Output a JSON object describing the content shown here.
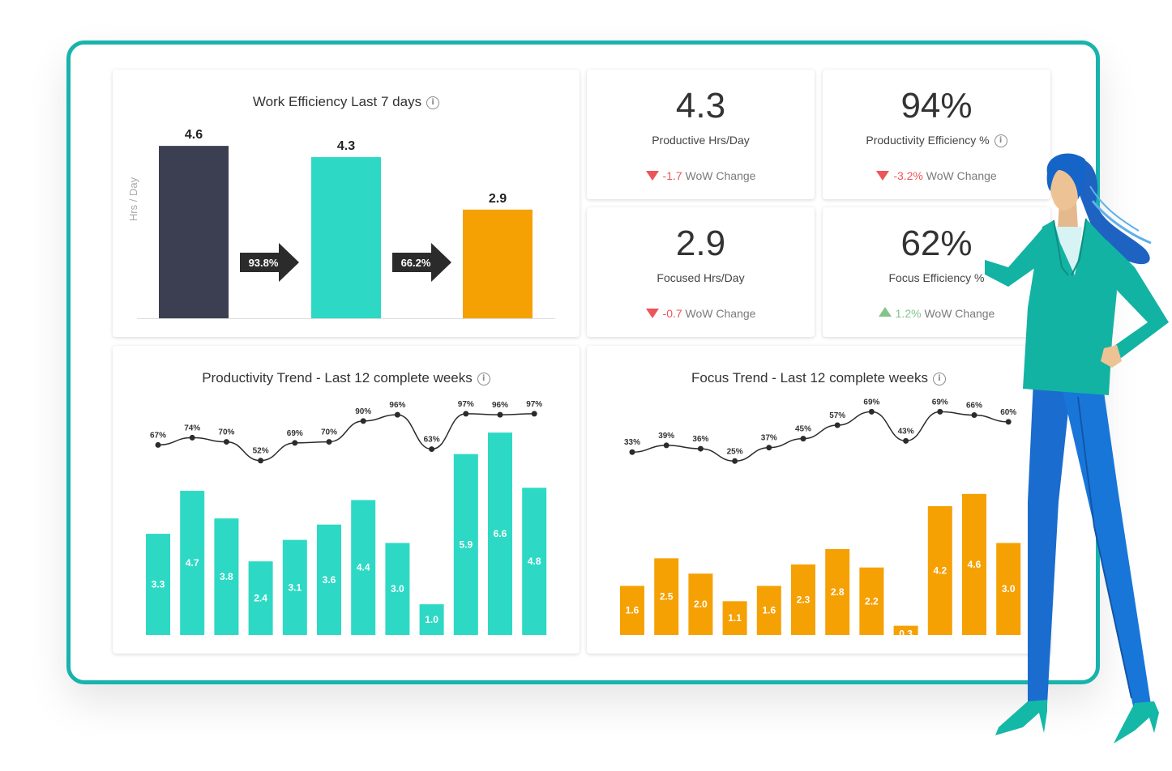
{
  "colors": {
    "frame": "#18b3ad",
    "dark_bar": "#3b3f51",
    "teal": "#2dd9c5",
    "orange": "#f5a104",
    "negative": "#ee5558",
    "positive": "#84c48b"
  },
  "work_efficiency": {
    "title": "Work Efficiency Last 7 days",
    "info_icon": "info-icon",
    "ylabel": "Hrs / Day",
    "arrows": [
      "93.8%",
      "66.2%"
    ]
  },
  "kpis": [
    {
      "value": "4.3",
      "label": "Productive Hrs/Day",
      "change": "-1.7",
      "change_suffix": "WoW Change",
      "direction": "down",
      "has_info": false
    },
    {
      "value": "94%",
      "label": "Productivity Efficiency %",
      "change": "-3.2%",
      "change_suffix": "WoW Change",
      "direction": "down",
      "has_info": true
    },
    {
      "value": "2.9",
      "label": "Focused Hrs/Day",
      "change": "-0.7",
      "change_suffix": "WoW Change",
      "direction": "down",
      "has_info": false
    },
    {
      "value": "62%",
      "label": "Focus Efficiency %",
      "change": "1.2%",
      "change_suffix": "WoW Change",
      "direction": "up",
      "has_info": false
    }
  ],
  "productivity_trend": {
    "title": "Productivity Trend - Last 12 complete weeks"
  },
  "focus_trend": {
    "title": "Focus Trend - Last 12 complete weeks"
  },
  "chart_data": [
    {
      "type": "bar",
      "title": "Work Efficiency Last 7 days",
      "ylabel": "Hrs / Day",
      "categories": [
        "",
        "",
        ""
      ],
      "values": [
        4.6,
        4.3,
        2.9
      ],
      "value_labels": [
        "4.6",
        "4.3",
        "2.9"
      ],
      "colors": [
        "#3b3f51",
        "#2dd9c5",
        "#f5a104"
      ],
      "ylim": [
        0,
        5.1
      ],
      "annotations": [
        "93.8%",
        "66.2%"
      ]
    },
    {
      "type": "bar",
      "title": "Productivity Trend - Last 12 complete weeks",
      "values": [
        3.3,
        4.7,
        3.8,
        2.4,
        3.1,
        3.6,
        4.4,
        3.0,
        1.0,
        5.9,
        6.6,
        4.8
      ],
      "value_labels": [
        "3.3",
        "4.7",
        "3.8",
        "2.4",
        "3.1",
        "3.6",
        "4.4",
        "3.0",
        "1.0",
        "5.9",
        "6.6",
        "4.8"
      ],
      "line_values": [
        67,
        74,
        70,
        52,
        69,
        70,
        90,
        96,
        63,
        97,
        96,
        97
      ],
      "line_labels": [
        "67%",
        "74%",
        "70%",
        "52%",
        "69%",
        "70%",
        "90%",
        "96%",
        "63%",
        "97%",
        "96%",
        "97%"
      ],
      "bar_color": "#2dd9c5",
      "ylim": [
        0,
        7.0
      ],
      "line_ylim": [
        30,
        100
      ]
    },
    {
      "type": "bar",
      "title": "Focus Trend - Last 12 complete weeks",
      "values": [
        1.6,
        2.5,
        2.0,
        1.1,
        1.6,
        2.3,
        2.8,
        2.2,
        0.3,
        4.2,
        4.6,
        3.0
      ],
      "value_labels": [
        "1.6",
        "2.5",
        "2.0",
        "1.1",
        "1.6",
        "2.3",
        "2.8",
        "2.2",
        "0.3",
        "4.2",
        "4.6",
        "3.0"
      ],
      "line_values": [
        33,
        39,
        36,
        25,
        37,
        45,
        57,
        69,
        43,
        69,
        66,
        60
      ],
      "line_labels": [
        "33%",
        "39%",
        "36%",
        "25%",
        "37%",
        "45%",
        "57%",
        "69%",
        "43%",
        "69%",
        "66%",
        "60%"
      ],
      "bar_color": "#f5a104",
      "ylim": [
        0,
        7.0
      ],
      "line_ylim": [
        5,
        70
      ]
    }
  ]
}
